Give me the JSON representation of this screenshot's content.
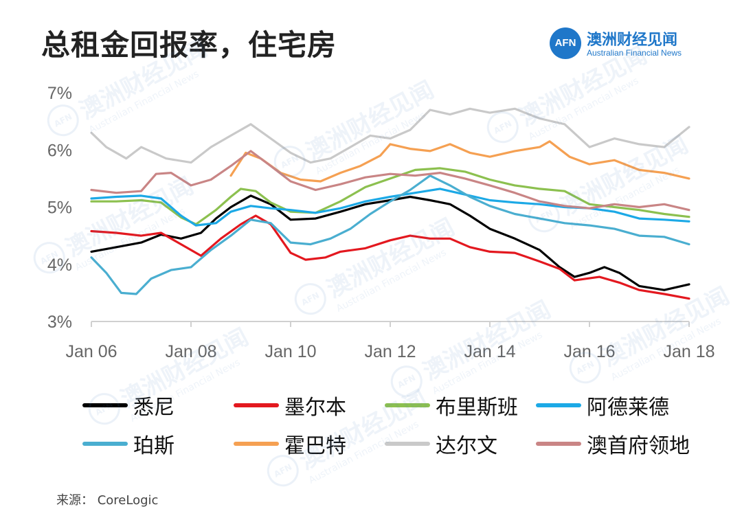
{
  "title": "总租金回报率，住宅房",
  "logo": {
    "mark": "AFN",
    "name_cn": "澳洲财经见闻",
    "name_en": "Australian Financial News",
    "color": "#1f77c9"
  },
  "watermark": {
    "mark": "AFN",
    "text_cn": "澳洲财经见闻",
    "text_en": "Australian Financial News"
  },
  "source": "来源： CoreLogic",
  "chart_data": {
    "type": "line",
    "title": "总租金回报率，住宅房",
    "xlabel": "",
    "ylabel": "",
    "x_ticks": [
      2006,
      2008,
      2010,
      2012,
      2014,
      2016,
      2018
    ],
    "x_tick_labels": [
      "Jan 06",
      "Jan 08",
      "Jan 10",
      "Jan 12",
      "Jan 14",
      "Jan 16",
      "Jan 18"
    ],
    "y_ticks": [
      3,
      4,
      5,
      6,
      7
    ],
    "y_tick_labels": [
      "3%",
      "4%",
      "5%",
      "6%",
      "7%"
    ],
    "xlim": [
      2006,
      2018
    ],
    "ylim": [
      3,
      7
    ],
    "grid": false,
    "series": [
      {
        "name": "悉尼",
        "color": "#000000",
        "points": [
          [
            2006.0,
            4.22
          ],
          [
            2006.5,
            4.3
          ],
          [
            2007.0,
            4.38
          ],
          [
            2007.4,
            4.52
          ],
          [
            2007.8,
            4.45
          ],
          [
            2008.2,
            4.55
          ],
          [
            2008.5,
            4.8
          ],
          [
            2008.8,
            5.0
          ],
          [
            2009.2,
            5.2
          ],
          [
            2009.6,
            5.05
          ],
          [
            2010.0,
            4.78
          ],
          [
            2010.5,
            4.8
          ],
          [
            2011.0,
            4.92
          ],
          [
            2011.5,
            5.05
          ],
          [
            2012.0,
            5.12
          ],
          [
            2012.4,
            5.18
          ],
          [
            2012.8,
            5.12
          ],
          [
            2013.2,
            5.05
          ],
          [
            2013.6,
            4.85
          ],
          [
            2014.0,
            4.62
          ],
          [
            2014.5,
            4.45
          ],
          [
            2015.0,
            4.25
          ],
          [
            2015.4,
            3.95
          ],
          [
            2015.7,
            3.78
          ],
          [
            2016.0,
            3.85
          ],
          [
            2016.3,
            3.95
          ],
          [
            2016.6,
            3.85
          ],
          [
            2017.0,
            3.62
          ],
          [
            2017.5,
            3.55
          ],
          [
            2018.0,
            3.65
          ]
        ]
      },
      {
        "name": "墨尔本",
        "color": "#e3181f",
        "points": [
          [
            2006.0,
            4.58
          ],
          [
            2006.5,
            4.55
          ],
          [
            2007.0,
            4.5
          ],
          [
            2007.4,
            4.55
          ],
          [
            2007.8,
            4.35
          ],
          [
            2008.2,
            4.15
          ],
          [
            2008.6,
            4.45
          ],
          [
            2009.0,
            4.7
          ],
          [
            2009.3,
            4.85
          ],
          [
            2009.6,
            4.7
          ],
          [
            2010.0,
            4.2
          ],
          [
            2010.3,
            4.08
          ],
          [
            2010.7,
            4.12
          ],
          [
            2011.0,
            4.22
          ],
          [
            2011.5,
            4.28
          ],
          [
            2012.0,
            4.42
          ],
          [
            2012.4,
            4.5
          ],
          [
            2012.8,
            4.45
          ],
          [
            2013.2,
            4.45
          ],
          [
            2013.6,
            4.3
          ],
          [
            2014.0,
            4.22
          ],
          [
            2014.5,
            4.2
          ],
          [
            2015.0,
            4.05
          ],
          [
            2015.4,
            3.92
          ],
          [
            2015.7,
            3.72
          ],
          [
            2016.2,
            3.78
          ],
          [
            2016.6,
            3.68
          ],
          [
            2017.0,
            3.55
          ],
          [
            2017.5,
            3.48
          ],
          [
            2018.0,
            3.4
          ]
        ]
      },
      {
        "name": "布里斯班",
        "color": "#8cc04f",
        "points": [
          [
            2006.0,
            5.1
          ],
          [
            2006.5,
            5.1
          ],
          [
            2007.0,
            5.12
          ],
          [
            2007.4,
            5.08
          ],
          [
            2007.8,
            4.82
          ],
          [
            2008.1,
            4.7
          ],
          [
            2008.5,
            4.95
          ],
          [
            2008.8,
            5.18
          ],
          [
            2009.0,
            5.32
          ],
          [
            2009.3,
            5.28
          ],
          [
            2009.6,
            5.08
          ],
          [
            2010.0,
            4.92
          ],
          [
            2010.5,
            4.9
          ],
          [
            2011.0,
            5.1
          ],
          [
            2011.5,
            5.35
          ],
          [
            2012.0,
            5.5
          ],
          [
            2012.5,
            5.65
          ],
          [
            2013.0,
            5.68
          ],
          [
            2013.5,
            5.62
          ],
          [
            2014.0,
            5.48
          ],
          [
            2014.5,
            5.38
          ],
          [
            2015.0,
            5.32
          ],
          [
            2015.5,
            5.28
          ],
          [
            2016.0,
            5.05
          ],
          [
            2016.5,
            5.0
          ],
          [
            2017.0,
            4.95
          ],
          [
            2017.5,
            4.88
          ],
          [
            2018.0,
            4.83
          ]
        ]
      },
      {
        "name": "阿德莱德",
        "color": "#1ca9e6",
        "points": [
          [
            2006.0,
            5.15
          ],
          [
            2006.5,
            5.18
          ],
          [
            2007.0,
            5.2
          ],
          [
            2007.4,
            5.15
          ],
          [
            2007.8,
            4.85
          ],
          [
            2008.1,
            4.68
          ],
          [
            2008.5,
            4.72
          ],
          [
            2008.8,
            4.92
          ],
          [
            2009.2,
            5.02
          ],
          [
            2009.6,
            4.98
          ],
          [
            2010.0,
            4.95
          ],
          [
            2010.5,
            4.9
          ],
          [
            2011.0,
            4.98
          ],
          [
            2011.5,
            5.1
          ],
          [
            2012.0,
            5.18
          ],
          [
            2012.5,
            5.25
          ],
          [
            2013.0,
            5.32
          ],
          [
            2013.5,
            5.22
          ],
          [
            2014.0,
            5.12
          ],
          [
            2014.5,
            5.08
          ],
          [
            2015.0,
            5.05
          ],
          [
            2015.5,
            5.0
          ],
          [
            2016.0,
            4.98
          ],
          [
            2016.5,
            4.92
          ],
          [
            2017.0,
            4.8
          ],
          [
            2017.5,
            4.78
          ],
          [
            2018.0,
            4.75
          ]
        ]
      },
      {
        "name": "珀斯",
        "color": "#4aaed0",
        "points": [
          [
            2006.0,
            4.12
          ],
          [
            2006.3,
            3.85
          ],
          [
            2006.6,
            3.5
          ],
          [
            2006.9,
            3.48
          ],
          [
            2007.2,
            3.75
          ],
          [
            2007.6,
            3.9
          ],
          [
            2008.0,
            3.95
          ],
          [
            2008.4,
            4.25
          ],
          [
            2008.8,
            4.5
          ],
          [
            2009.2,
            4.78
          ],
          [
            2009.6,
            4.72
          ],
          [
            2010.0,
            4.38
          ],
          [
            2010.4,
            4.35
          ],
          [
            2010.8,
            4.45
          ],
          [
            2011.2,
            4.62
          ],
          [
            2011.6,
            4.88
          ],
          [
            2012.0,
            5.1
          ],
          [
            2012.4,
            5.3
          ],
          [
            2012.8,
            5.55
          ],
          [
            2013.2,
            5.38
          ],
          [
            2013.6,
            5.18
          ],
          [
            2014.0,
            5.02
          ],
          [
            2014.5,
            4.88
          ],
          [
            2015.0,
            4.8
          ],
          [
            2015.5,
            4.72
          ],
          [
            2016.0,
            4.68
          ],
          [
            2016.5,
            4.62
          ],
          [
            2017.0,
            4.5
          ],
          [
            2017.5,
            4.48
          ],
          [
            2018.0,
            4.35
          ]
        ]
      },
      {
        "name": "霍巴特",
        "color": "#f5a052",
        "points": [
          [
            2008.8,
            5.55
          ],
          [
            2009.1,
            5.95
          ],
          [
            2009.4,
            5.85
          ],
          [
            2009.8,
            5.6
          ],
          [
            2010.2,
            5.48
          ],
          [
            2010.6,
            5.45
          ],
          [
            2011.0,
            5.6
          ],
          [
            2011.4,
            5.72
          ],
          [
            2011.8,
            5.9
          ],
          [
            2012.0,
            6.1
          ],
          [
            2012.4,
            6.02
          ],
          [
            2012.8,
            5.98
          ],
          [
            2013.2,
            6.1
          ],
          [
            2013.6,
            5.95
          ],
          [
            2014.0,
            5.88
          ],
          [
            2014.5,
            5.98
          ],
          [
            2015.0,
            6.05
          ],
          [
            2015.2,
            6.15
          ],
          [
            2015.6,
            5.88
          ],
          [
            2016.0,
            5.75
          ],
          [
            2016.5,
            5.82
          ],
          [
            2017.0,
            5.65
          ],
          [
            2017.5,
            5.6
          ],
          [
            2018.0,
            5.5
          ]
        ]
      },
      {
        "name": "达尔文",
        "color": "#c9c9c9",
        "points": [
          [
            2006.0,
            6.3
          ],
          [
            2006.3,
            6.05
          ],
          [
            2006.7,
            5.85
          ],
          [
            2007.0,
            6.05
          ],
          [
            2007.5,
            5.85
          ],
          [
            2008.0,
            5.78
          ],
          [
            2008.4,
            6.05
          ],
          [
            2008.8,
            6.25
          ],
          [
            2009.2,
            6.45
          ],
          [
            2009.6,
            6.2
          ],
          [
            2010.0,
            5.95
          ],
          [
            2010.4,
            5.78
          ],
          [
            2010.8,
            5.85
          ],
          [
            2011.2,
            6.05
          ],
          [
            2011.6,
            6.25
          ],
          [
            2012.0,
            6.2
          ],
          [
            2012.4,
            6.35
          ],
          [
            2012.8,
            6.7
          ],
          [
            2013.2,
            6.62
          ],
          [
            2013.6,
            6.72
          ],
          [
            2014.0,
            6.65
          ],
          [
            2014.5,
            6.72
          ],
          [
            2015.0,
            6.55
          ],
          [
            2015.5,
            6.45
          ],
          [
            2016.0,
            6.05
          ],
          [
            2016.5,
            6.2
          ],
          [
            2017.0,
            6.1
          ],
          [
            2017.5,
            6.05
          ],
          [
            2018.0,
            6.4
          ]
        ]
      },
      {
        "name": "澳首府领地",
        "color": "#c98585",
        "points": [
          [
            2006.0,
            5.3
          ],
          [
            2006.5,
            5.25
          ],
          [
            2007.0,
            5.28
          ],
          [
            2007.3,
            5.58
          ],
          [
            2007.6,
            5.6
          ],
          [
            2008.0,
            5.38
          ],
          [
            2008.4,
            5.48
          ],
          [
            2008.8,
            5.72
          ],
          [
            2009.2,
            5.98
          ],
          [
            2009.6,
            5.72
          ],
          [
            2010.0,
            5.45
          ],
          [
            2010.5,
            5.3
          ],
          [
            2011.0,
            5.4
          ],
          [
            2011.5,
            5.52
          ],
          [
            2012.0,
            5.58
          ],
          [
            2012.5,
            5.55
          ],
          [
            2013.0,
            5.6
          ],
          [
            2013.5,
            5.5
          ],
          [
            2014.0,
            5.38
          ],
          [
            2014.5,
            5.25
          ],
          [
            2015.0,
            5.1
          ],
          [
            2015.5,
            5.02
          ],
          [
            2016.0,
            4.98
          ],
          [
            2016.5,
            5.05
          ],
          [
            2017.0,
            5.0
          ],
          [
            2017.5,
            5.05
          ],
          [
            2018.0,
            4.95
          ]
        ]
      }
    ]
  }
}
